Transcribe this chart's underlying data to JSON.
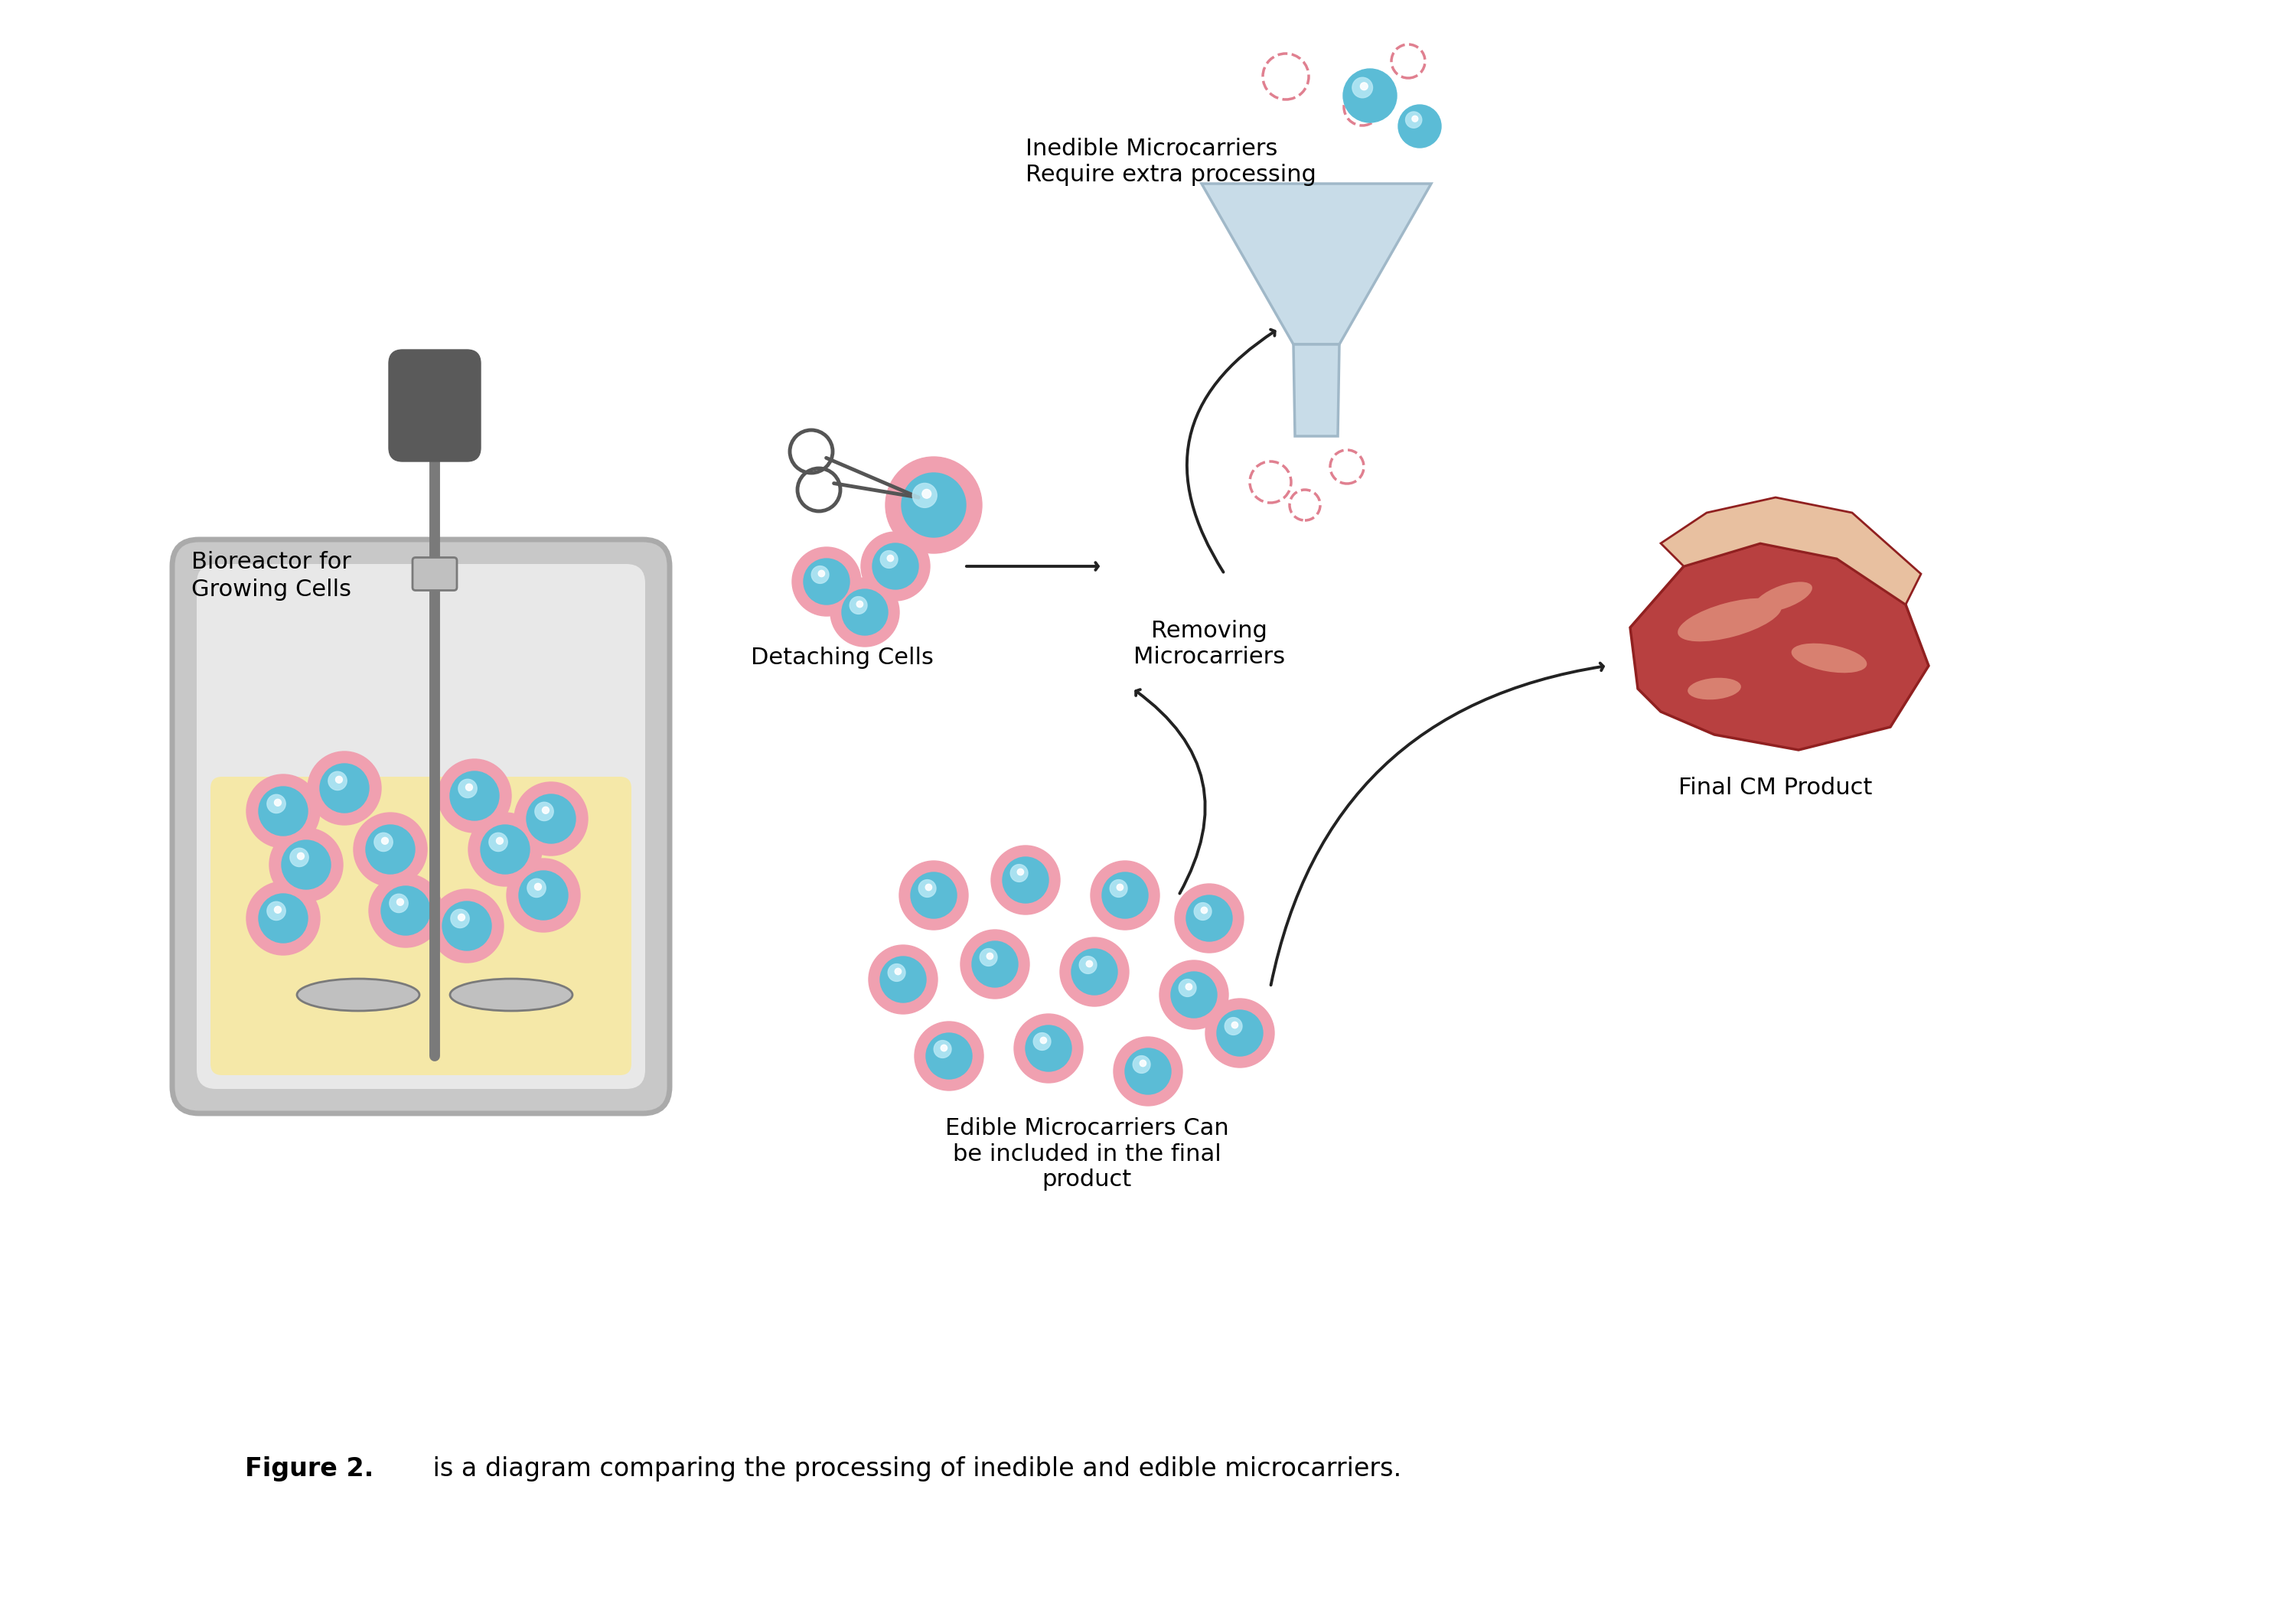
{
  "title": "Figure 2.",
  "caption": " is a diagram comparing the processing of inedible and edible microcarriers.",
  "bioreactor_label": "Bioreactor for\nGrowing Cells",
  "detaching_label": "Detaching Cells",
  "removing_label": "Removing\nMicrocarriers",
  "inedible_label": "Inedible Microcarriers\nRequire extra processing",
  "edible_label": "Edible Microcarriers Can\nbe included in the final\nproduct",
  "final_product_label": "Final CM Product",
  "bg_color": "#ffffff",
  "bioreactor_outer_color": "#c8c8c8",
  "bioreactor_inner_color": "#e8e8e8",
  "bioreactor_liquid_color": "#f5e8a8",
  "bioreactor_outline_color": "#aaaaaa",
  "cell_blue": "#5bbcd6",
  "cell_ring_color": "#f0a0b0",
  "cell_highlight": "#b8e8f5",
  "stirrer_dark": "#5a5a5a",
  "stirrer_mid": "#7a7a7a",
  "stirrer_light": "#c0c0c0",
  "funnel_color": "#c8dce8",
  "funnel_outline": "#a0b8c8",
  "dashed_circle_color": "#e08090",
  "arrow_color": "#222222",
  "scissors_color": "#555555",
  "steak_main": "#b84040",
  "steak_fat": "#e8c0a0",
  "steak_dark": "#902020",
  "steak_pink": "#d88070"
}
